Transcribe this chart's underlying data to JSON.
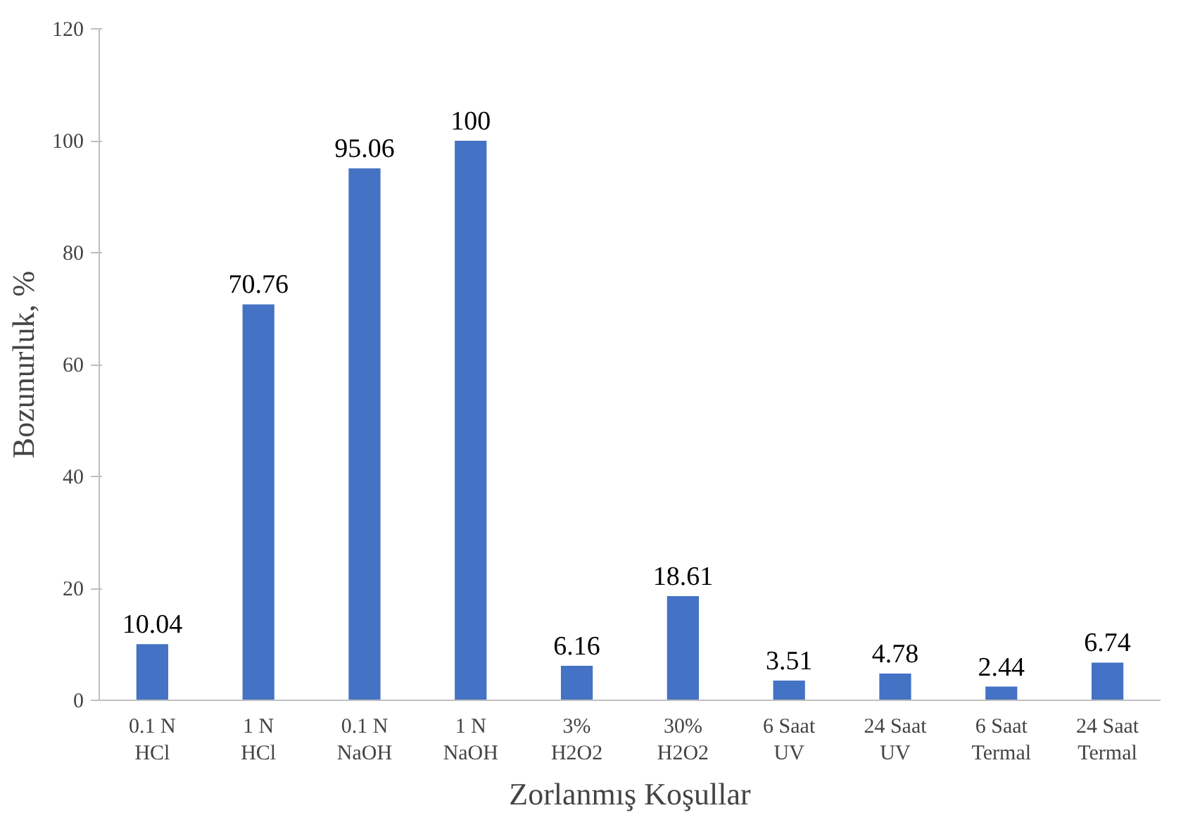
{
  "chart_data": {
    "type": "bar",
    "xlabel": "Zorlanmış Koşullar",
    "ylabel": "Bozunurluk, %",
    "categories": [
      "0.1 N\nHCl",
      "1 N\nHCl",
      "0.1 N\nNaOH",
      "1 N\nNaOH",
      "3%\nH2O2",
      "30%\nH2O2",
      "6 Saat\nUV",
      "24 Saat\nUV",
      "6 Saat\nTermal",
      "24 Saat\nTermal"
    ],
    "values": [
      10.04,
      70.76,
      95.06,
      100,
      6.16,
      18.61,
      3.51,
      4.78,
      2.44,
      6.74
    ],
    "color": "#4472c4",
    "ylim": [
      0,
      120
    ],
    "yticks": [
      0,
      20,
      40,
      60,
      80,
      100,
      120
    ],
    "data_labels": true,
    "grid": false
  }
}
